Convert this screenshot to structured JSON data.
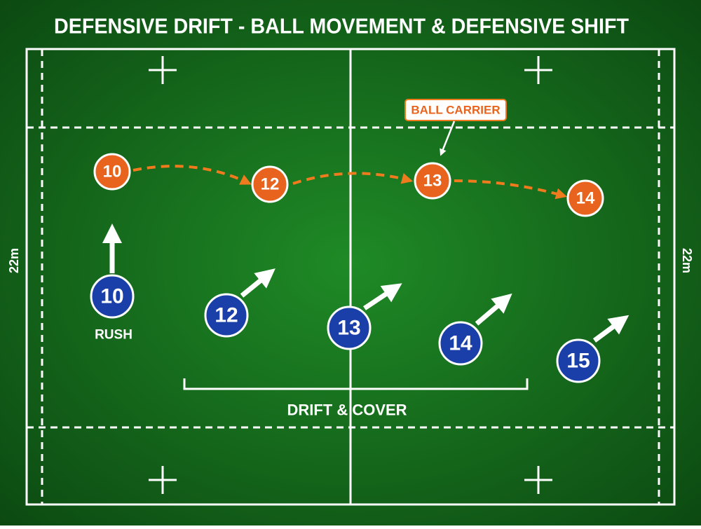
{
  "title": "DEFENSIVE DRIFT - BALL MOVEMENT & DEFENSIVE SHIFT",
  "field": {
    "left_label": "22m",
    "right_label": "22m"
  },
  "attackers": [
    {
      "label": "10"
    },
    {
      "label": "12"
    },
    {
      "label": "13"
    },
    {
      "label": "14"
    }
  ],
  "defenders": [
    {
      "label": "10"
    },
    {
      "label": "12"
    },
    {
      "label": "13"
    },
    {
      "label": "14"
    },
    {
      "label": "15"
    }
  ],
  "annotations": {
    "ball_carrier": "BALL CARRIER",
    "rush": "RUSH",
    "drift": "DRIFT & COVER"
  }
}
